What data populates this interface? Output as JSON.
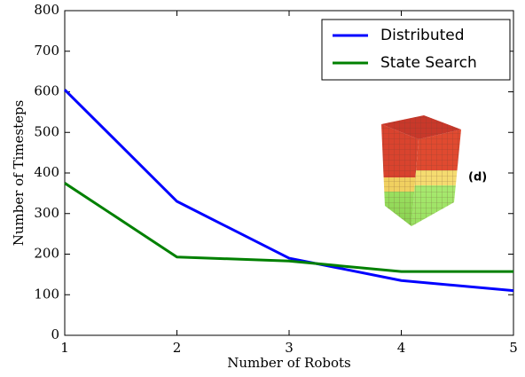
{
  "chart_data": {
    "type": "line",
    "x_label": "Number of Robots",
    "y_label": "Number of Timesteps",
    "x": [
      1,
      2,
      3,
      4,
      5
    ],
    "series": [
      {
        "name": "Distributed",
        "color": "#0000ff",
        "values": [
          605,
          330,
          190,
          135,
          110
        ]
      },
      {
        "name": "State Search",
        "color": "#008000",
        "values": [
          375,
          193,
          183,
          157,
          157
        ]
      }
    ],
    "xlim": [
      1,
      5
    ],
    "xticks": [
      1,
      2,
      3,
      4,
      5
    ],
    "ylim": [
      0,
      800
    ],
    "yticks": [
      0,
      100,
      200,
      300,
      400,
      500,
      600,
      700,
      800
    ],
    "legend": "upper right",
    "annotation": "(d)"
  }
}
